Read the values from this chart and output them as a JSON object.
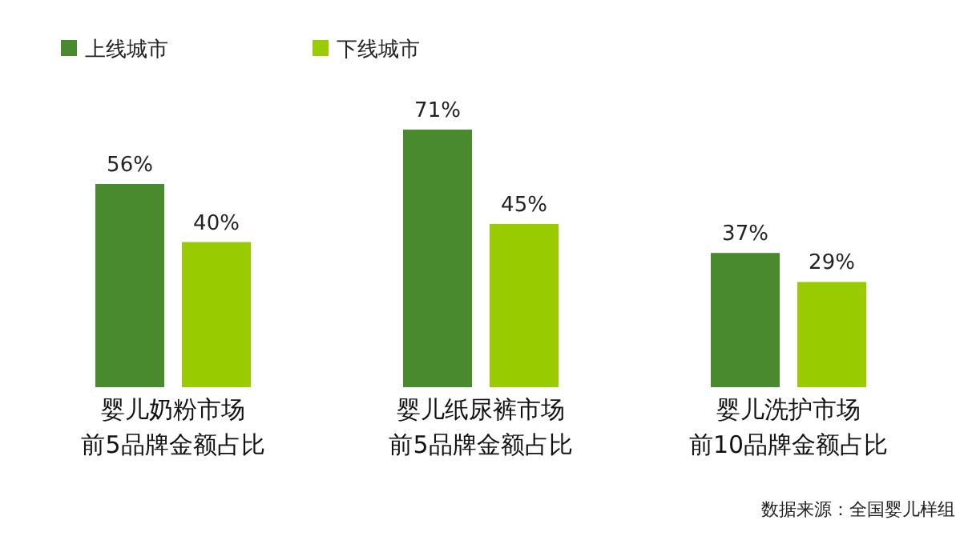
{
  "chart_data": {
    "type": "bar",
    "categories": [
      "婴儿奶粉市场前5品牌金额占比",
      "婴儿纸尿裤市场前5品牌金额占比",
      "婴儿洗护市场前10品牌金额占比"
    ],
    "series": [
      {
        "name": "上线城市",
        "color": "#4a8a2e",
        "values": [
          56,
          71,
          37
        ],
        "value_labels": [
          "56%",
          "71%",
          "37%"
        ]
      },
      {
        "name": "下线城市",
        "color": "#99cc00",
        "values": [
          40,
          45,
          29
        ],
        "value_labels": [
          "40%",
          "45%",
          "29%"
        ]
      }
    ],
    "legend": "top left",
    "annotations": [
      "数据来源：全国婴儿样组"
    ]
  }
}
